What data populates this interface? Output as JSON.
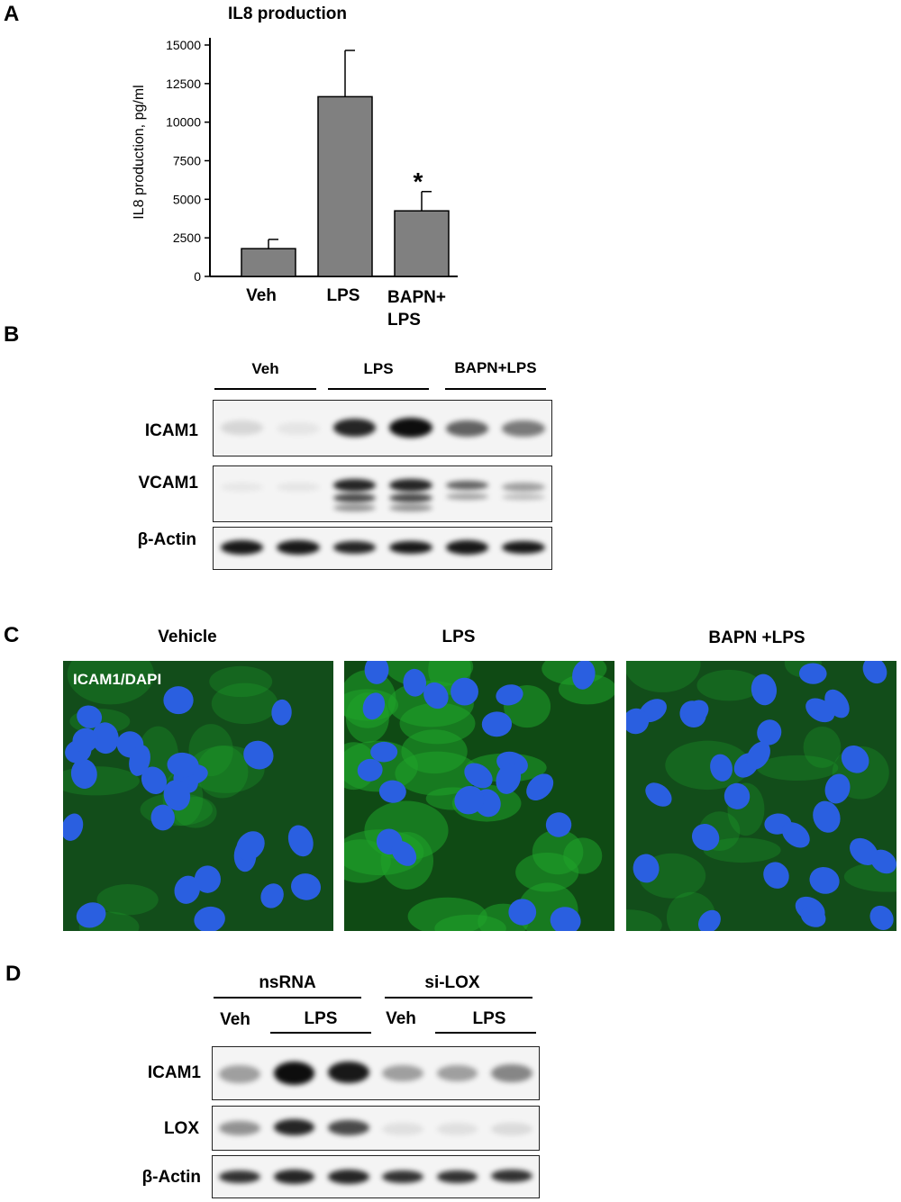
{
  "panels": {
    "a": "A",
    "b": "B",
    "c": "C",
    "d": "D"
  },
  "chart_data": {
    "type": "bar",
    "title": "IL8 production",
    "ylabel": "IL8 production, pg/ml",
    "xlabel": "",
    "categories": [
      "Veh",
      "LPS",
      "BAPN+ LPS"
    ],
    "category_lines": [
      [
        "Veh"
      ],
      [
        "LPS"
      ],
      [
        "BAPN+",
        "LPS"
      ]
    ],
    "values": [
      1800,
      11650,
      4250
    ],
    "error_upper": [
      2400,
      14650,
      5500
    ],
    "annotations": [
      "",
      "",
      "*"
    ],
    "ylim": [
      0,
      15000
    ],
    "yticks": [
      "0",
      "2500",
      "5000",
      "7500",
      "10000",
      "12500",
      "15000"
    ],
    "bar_color": "#808080",
    "grid": false
  },
  "blot_b": {
    "groups": [
      "Veh",
      "LPS",
      "BAPN+LPS"
    ],
    "rows": [
      "ICAM1",
      "VCAM1",
      "β-Actin"
    ]
  },
  "panel_c": {
    "titles": [
      "Vehicle",
      "LPS",
      "BAPN +LPS"
    ],
    "overlay": "ICAM1/DAPI",
    "green_color": "#1fa32a",
    "nucleus_color": "#2a5fe0"
  },
  "blot_d": {
    "groups": [
      "nsRNA",
      "si-LOX"
    ],
    "subgroups": [
      "Veh",
      "LPS",
      "Veh",
      "LPS"
    ],
    "rows": [
      "ICAM1",
      "LOX",
      "β-Actin"
    ]
  }
}
